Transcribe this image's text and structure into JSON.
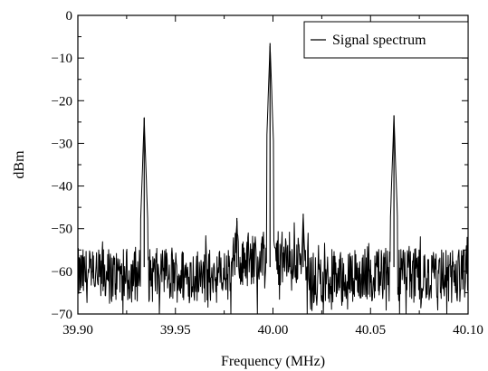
{
  "chart_data": {
    "type": "line",
    "title": "",
    "xlabel": "Frequency (MHz)",
    "ylabel": "dBm",
    "xlim": [
      39.9,
      40.1
    ],
    "ylim": [
      -70,
      0
    ],
    "x_ticks": [
      "39.90",
      "39.95",
      "40.00",
      "40.05",
      "40.10"
    ],
    "x_tick_values": [
      39.9,
      39.95,
      40.0,
      40.05,
      40.1
    ],
    "y_ticks": [
      "0",
      "−10",
      "−20",
      "−30",
      "−40",
      "−50",
      "−60",
      "−70"
    ],
    "y_tick_values": [
      0,
      -10,
      -20,
      -30,
      -40,
      -50,
      -60,
      -70
    ],
    "grid": false,
    "legend": {
      "position": "top-right",
      "entries": [
        "Signal spectrum"
      ]
    },
    "noise_floor_dbm": -61,
    "noise_floor_near_carrier_dbm": -57,
    "noise_spread_db": 4,
    "series": [
      {
        "name": "Signal spectrum",
        "color": "#000000",
        "peaks": [
          {
            "x": 39.934,
            "y": -24
          },
          {
            "x": 39.9815,
            "y": -47.5
          },
          {
            "x": 39.9985,
            "y": -6.5
          },
          {
            "x": 40.0155,
            "y": -46.5
          },
          {
            "x": 40.062,
            "y": -23.5
          }
        ]
      }
    ]
  }
}
